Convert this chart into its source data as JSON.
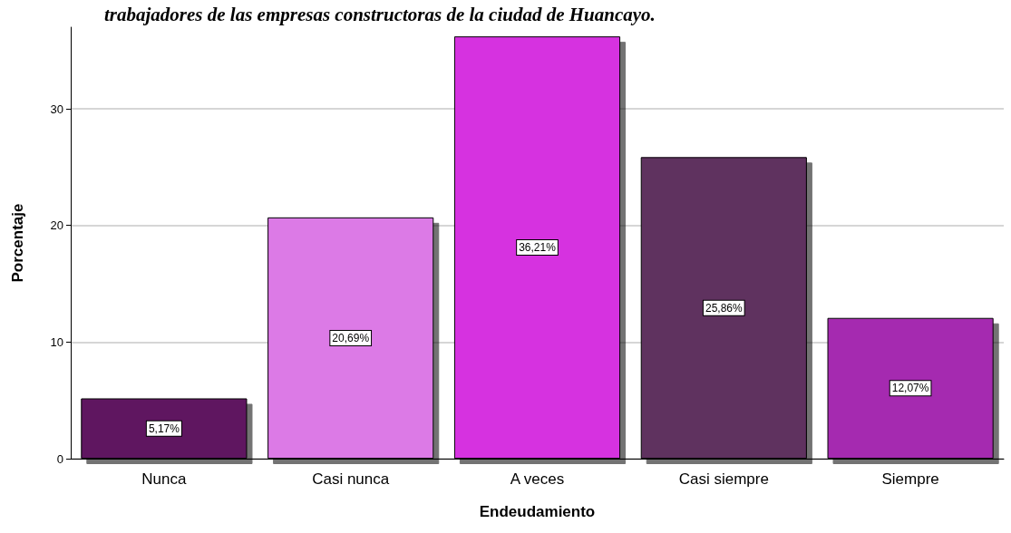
{
  "chart_data": {
    "type": "bar",
    "title": "trabajadores de las empresas constructoras de la ciudad de Huancayo.",
    "xlabel": "Endeudamiento",
    "ylabel": "Porcentaje",
    "categories": [
      "Nunca",
      "Casi nunca",
      "A veces",
      "Casi siempre",
      "Siempre"
    ],
    "values": [
      5.17,
      20.69,
      36.21,
      25.86,
      12.07
    ],
    "colors": [
      "#5e1760",
      "#dc7ae6",
      "#d633e0",
      "#5e325e",
      "#a52ab0"
    ],
    "value_labels": [
      "5,17%",
      "20,69%",
      "36,21%",
      "25,86%",
      "12,07%"
    ],
    "ylim": [
      0,
      37
    ],
    "yticks": [
      0,
      10,
      20,
      30
    ],
    "grid": "y"
  }
}
